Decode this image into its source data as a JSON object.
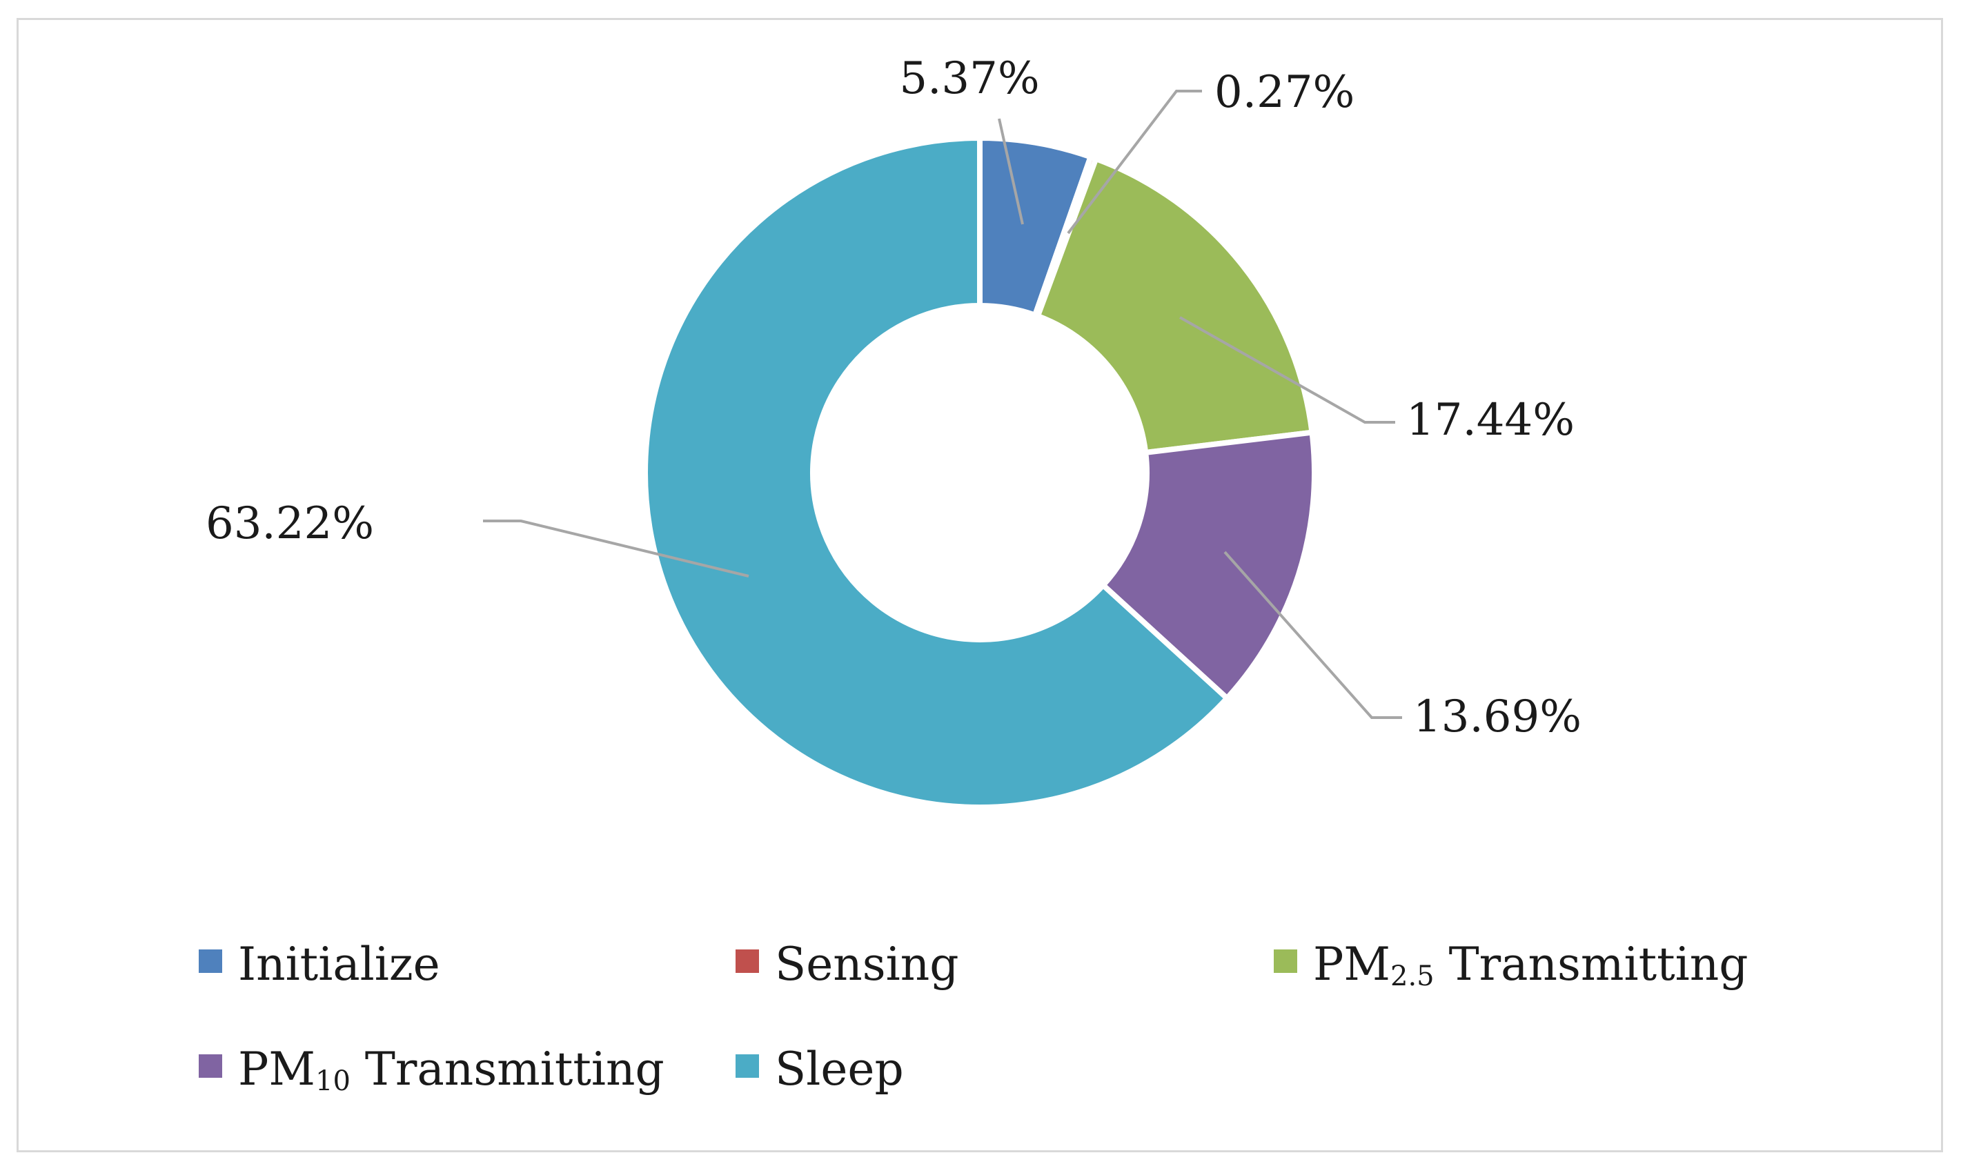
{
  "chart_data": {
    "type": "pie",
    "variant": "donut",
    "title": "",
    "categories": [
      "Initialize",
      "Sensing",
      "PM2.5 Transmitting",
      "PM10 Transmitting",
      "Sleep"
    ],
    "values": [
      5.37,
      0.27,
      17.44,
      13.69,
      63.22
    ],
    "data_labels": [
      "5.37%",
      "0.27%",
      "17.44%",
      "13.69%",
      "63.22%"
    ],
    "colors": [
      "#4f81bd",
      "#c0504d",
      "#9bbb59",
      "#8064a2",
      "#4bacc6"
    ],
    "legend": {
      "placement": "bottom",
      "entries": [
        {
          "main": "Initialize",
          "sub": "",
          "suffix": ""
        },
        {
          "main": "Sensing",
          "sub": "",
          "suffix": ""
        },
        {
          "main": "PM",
          "sub": "2.5",
          "suffix": " Transmitting"
        },
        {
          "main": "PM",
          "sub": "10",
          "suffix": " Transmitting"
        },
        {
          "main": "Sleep",
          "sub": "",
          "suffix": ""
        }
      ]
    }
  }
}
